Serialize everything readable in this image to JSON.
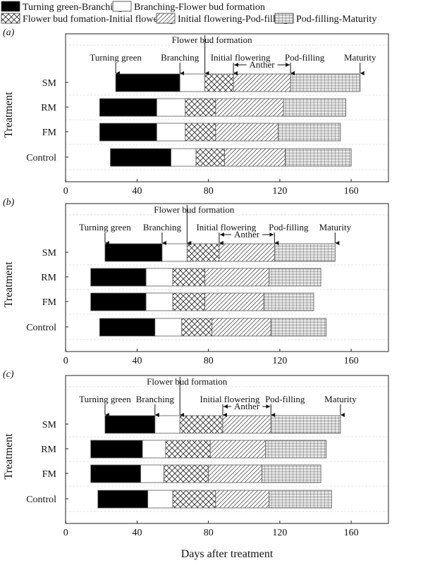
{
  "chart_data": {
    "type": "bar",
    "subtype": "stacked-horizontal-timeline",
    "xlabel": "Days after treatment",
    "ylabel": "Treatment",
    "xlim": [
      0,
      180
    ],
    "xticks": [
      0,
      40,
      80,
      120,
      160
    ],
    "categories": [
      "SM",
      "RM",
      "FM",
      "Control"
    ],
    "legend": [
      {
        "label": "Turning green-Branching",
        "fill": "black"
      },
      {
        "label": "Branching-Flower bud formation",
        "fill": "white"
      },
      {
        "label": "Flower bud fomation-Initial flowering",
        "fill": "crosshatch"
      },
      {
        "label": "Initial flowering-Pod-filling",
        "fill": "diagonal"
      },
      {
        "label": "Pod-filling-Maturity",
        "fill": "grid"
      }
    ],
    "stage_labels": [
      "Turning green",
      "Branching",
      "Flower bud formation",
      "Initial flowering",
      "Pod-filling",
      "Maturity"
    ],
    "anther_label": "Anther",
    "panels": [
      {
        "label": "(a)",
        "rows": [
          {
            "name": "SM",
            "boundaries": [
              28,
              64,
              78,
              94,
              126,
              165
            ]
          },
          {
            "name": "RM",
            "boundaries": [
              19,
              51,
              67,
              84,
              122,
              157
            ]
          },
          {
            "name": "FM",
            "boundaries": [
              19,
              51,
              67,
              84,
              119,
              154
            ]
          },
          {
            "name": "Control",
            "boundaries": [
              25,
              59,
              73,
              89,
              123,
              160
            ]
          }
        ]
      },
      {
        "label": "(b)",
        "rows": [
          {
            "name": "SM",
            "boundaries": [
              22,
              54,
              68,
              86,
              117,
              151
            ]
          },
          {
            "name": "RM",
            "boundaries": [
              14,
              45,
              60,
              78,
              114,
              143
            ]
          },
          {
            "name": "FM",
            "boundaries": [
              14,
              45,
              60,
              78,
              111,
              139
            ]
          },
          {
            "name": "Control",
            "boundaries": [
              19,
              50,
              65,
              82,
              115,
              146
            ]
          }
        ]
      },
      {
        "label": "(c)",
        "rows": [
          {
            "name": "SM",
            "boundaries": [
              22,
              50,
              64,
              88,
              115,
              154
            ]
          },
          {
            "name": "RM",
            "boundaries": [
              14,
              43,
              56,
              81,
              112,
              146
            ]
          },
          {
            "name": "FM",
            "boundaries": [
              14,
              42,
              55,
              80,
              110,
              143
            ]
          },
          {
            "name": "Control",
            "boundaries": [
              18,
              46,
              60,
              84,
              114,
              149
            ]
          }
        ]
      }
    ]
  }
}
